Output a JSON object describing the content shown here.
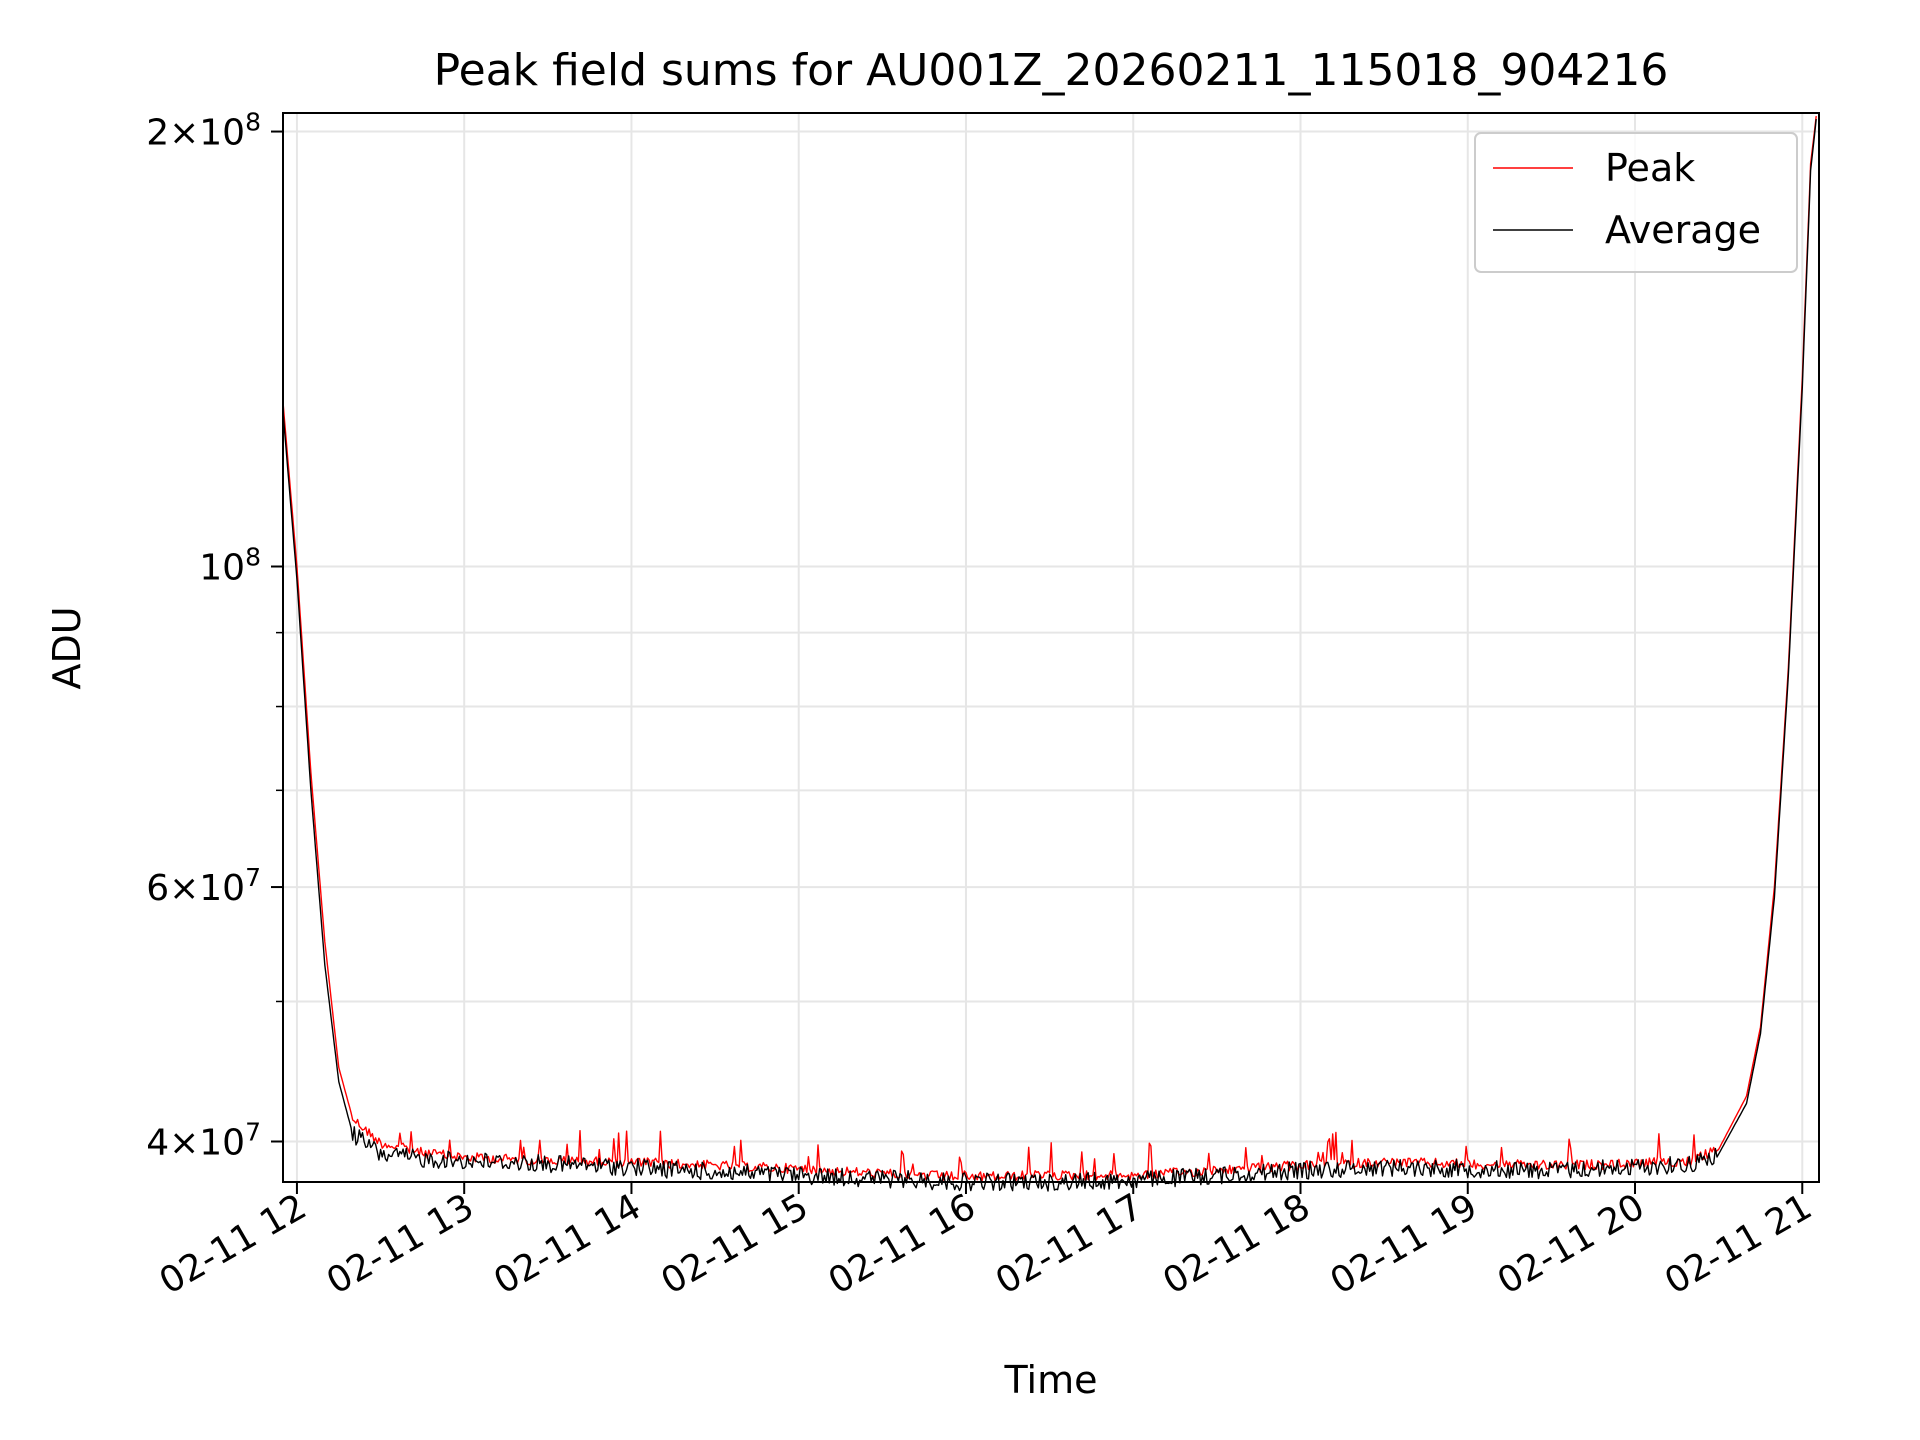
{
  "chart_data": {
    "type": "line",
    "title": "Peak field sums for AU001Z_20260211_115018_904216",
    "xlabel": "Time",
    "ylabel": "ADU",
    "y_scale": "log",
    "x_domain": [
      "2026-02-11 11:55",
      "2026-02-11 21:06"
    ],
    "ylim": [
      37500000,
      206000000
    ],
    "grid": true,
    "legend_position": "top-right",
    "x_ticks": [
      {
        "value": "2026-02-11 12:00",
        "label": "02-11 12"
      },
      {
        "value": "2026-02-11 13:00",
        "label": "02-11 13"
      },
      {
        "value": "2026-02-11 14:00",
        "label": "02-11 14"
      },
      {
        "value": "2026-02-11 15:00",
        "label": "02-11 15"
      },
      {
        "value": "2026-02-11 16:00",
        "label": "02-11 16"
      },
      {
        "value": "2026-02-11 17:00",
        "label": "02-11 17"
      },
      {
        "value": "2026-02-11 18:00",
        "label": "02-11 18"
      },
      {
        "value": "2026-02-11 19:00",
        "label": "02-11 19"
      },
      {
        "value": "2026-02-11 20:00",
        "label": "02-11 20"
      },
      {
        "value": "2026-02-11 21:00",
        "label": "02-11 21"
      }
    ],
    "y_ticks": [
      {
        "value": 40000000,
        "mantissa": "4",
        "times": "×",
        "base": "10",
        "exp": "7"
      },
      {
        "value": 60000000,
        "mantissa": "6",
        "times": "×",
        "base": "10",
        "exp": "7"
      },
      {
        "value": 100000000,
        "mantissa": "",
        "times": "",
        "base": "10",
        "exp": "8"
      },
      {
        "value": 200000000,
        "mantissa": "2",
        "times": "×",
        "base": "10",
        "exp": "8"
      }
    ],
    "y_minor_ticks": [
      50000000,
      70000000,
      80000000,
      90000000
    ],
    "series": [
      {
        "name": "Peak",
        "color": "#ff0000",
        "points": [
          [
            "2026-02-11 11:55",
            130000000
          ],
          [
            "2026-02-11 12:00",
            100000000
          ],
          [
            "2026-02-11 12:05",
            72000000
          ],
          [
            "2026-02-11 12:10",
            55000000
          ],
          [
            "2026-02-11 12:15",
            45000000
          ],
          [
            "2026-02-11 12:20",
            41500000
          ],
          [
            "2026-02-11 12:30",
            39900000
          ],
          [
            "2026-02-11 12:45",
            39300000
          ],
          [
            "2026-02-11 13:00",
            39000000
          ],
          [
            "2026-02-11 13:30",
            38800000
          ],
          [
            "2026-02-11 14:00",
            38700000
          ],
          [
            "2026-02-11 14:30",
            38500000
          ],
          [
            "2026-02-11 15:00",
            38300000
          ],
          [
            "2026-02-11 15:30",
            38000000
          ],
          [
            "2026-02-11 16:00",
            37800000
          ],
          [
            "2026-02-11 16:30",
            37900000
          ],
          [
            "2026-02-11 17:00",
            37900000
          ],
          [
            "2026-02-11 17:30",
            38200000
          ],
          [
            "2026-02-11 18:00",
            38500000
          ],
          [
            "2026-02-11 18:30",
            38700000
          ],
          [
            "2026-02-11 19:00",
            38600000
          ],
          [
            "2026-02-11 19:30",
            38500000
          ],
          [
            "2026-02-11 20:00",
            38600000
          ],
          [
            "2026-02-11 20:20",
            38800000
          ],
          [
            "2026-02-11 20:30",
            39500000
          ],
          [
            "2026-02-11 20:40",
            43000000
          ],
          [
            "2026-02-11 20:45",
            48000000
          ],
          [
            "2026-02-11 20:50",
            60000000
          ],
          [
            "2026-02-11 20:55",
            85000000
          ],
          [
            "2026-02-11 21:00",
            135000000
          ],
          [
            "2026-02-11 21:03",
            190000000
          ],
          [
            "2026-02-11 21:05",
            205000000
          ]
        ]
      },
      {
        "name": "Average",
        "color": "#000000",
        "points": [
          [
            "2026-02-11 11:55",
            128000000
          ],
          [
            "2026-02-11 12:00",
            98000000
          ],
          [
            "2026-02-11 12:05",
            70000000
          ],
          [
            "2026-02-11 12:10",
            53000000
          ],
          [
            "2026-02-11 12:15",
            44000000
          ],
          [
            "2026-02-11 12:20",
            40500000
          ],
          [
            "2026-02-11 12:30",
            39200000
          ],
          [
            "2026-02-11 12:45",
            38900000
          ],
          [
            "2026-02-11 13:00",
            38800000
          ],
          [
            "2026-02-11 13:30",
            38600000
          ],
          [
            "2026-02-11 14:00",
            38400000
          ],
          [
            "2026-02-11 14:30",
            38100000
          ],
          [
            "2026-02-11 15:00",
            37900000
          ],
          [
            "2026-02-11 15:30",
            37700000
          ],
          [
            "2026-02-11 16:00",
            37500000
          ],
          [
            "2026-02-11 16:30",
            37500000
          ],
          [
            "2026-02-11 17:00",
            37600000
          ],
          [
            "2026-02-11 17:30",
            37900000
          ],
          [
            "2026-02-11 18:00",
            38200000
          ],
          [
            "2026-02-11 18:30",
            38400000
          ],
          [
            "2026-02-11 19:00",
            38300000
          ],
          [
            "2026-02-11 19:30",
            38200000
          ],
          [
            "2026-02-11 20:00",
            38400000
          ],
          [
            "2026-02-11 20:20",
            38600000
          ],
          [
            "2026-02-11 20:30",
            39200000
          ],
          [
            "2026-02-11 20:40",
            42500000
          ],
          [
            "2026-02-11 20:45",
            47500000
          ],
          [
            "2026-02-11 20:50",
            59000000
          ],
          [
            "2026-02-11 20:55",
            84000000
          ],
          [
            "2026-02-11 21:00",
            133000000
          ],
          [
            "2026-02-11 21:03",
            188000000
          ],
          [
            "2026-02-11 21:05",
            204000000
          ]
        ]
      }
    ]
  }
}
